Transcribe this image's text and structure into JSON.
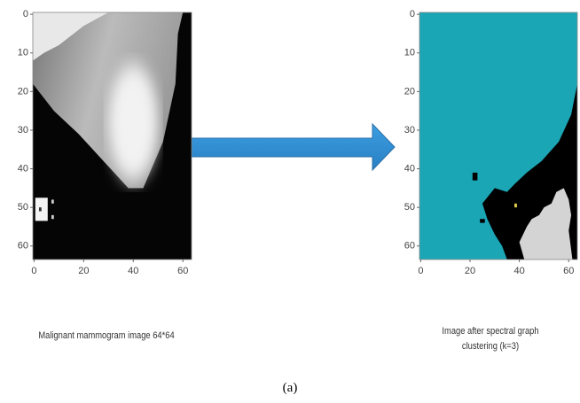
{
  "figure": {
    "panels": [
      {
        "caption": "Malignant mammogram image 64*64",
        "xlim": [
          -0.5,
          63.5
        ],
        "ylim": [
          63.5,
          -0.5
        ],
        "xticks": [
          0,
          20,
          40,
          60
        ],
        "yticks": [
          0,
          10,
          20,
          30,
          40,
          50,
          60
        ]
      },
      {
        "caption": "Image after spectral graph clustering (k=3)",
        "xlim": [
          -0.5,
          63.5
        ],
        "ylim": [
          63.5,
          -0.5
        ],
        "xticks": [
          0,
          20,
          40,
          60
        ],
        "yticks": [
          0,
          10,
          20,
          30,
          40,
          50,
          60
        ]
      }
    ],
    "label": "(a)"
  }
}
